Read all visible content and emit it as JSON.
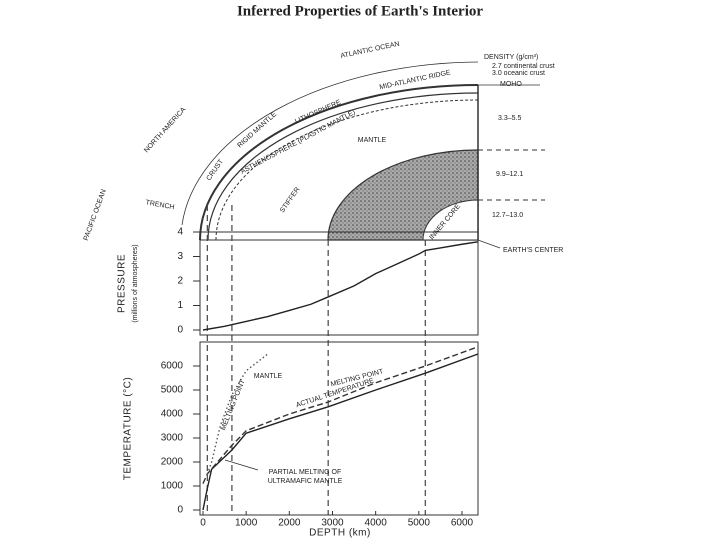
{
  "title": "Inferred Properties of Earth's Interior",
  "diagram": {
    "atlantic_ocean": "ATLANTIC OCEAN",
    "north_america": "NORTH AMERICA",
    "pacific_ocean": "PACIFIC OCEAN",
    "trench": "TRENCH",
    "ridge": "MID-ATLANTIC RIDGE",
    "lithosphere": "LITHOSPHERE",
    "asthenosphere": "ASTHENOSPHERE (PLASTIC MANTLE)",
    "rigid_mantle": "RIGID MANTLE",
    "crust": "CRUST",
    "mantle": "MANTLE",
    "stiffer": "STIFFER",
    "inner_core": "INNER CORE",
    "density_title": "DENSITY (g/cm³)",
    "continental_crust": "2.7 continental crust",
    "oceanic_crust": "3.0 oceanic crust",
    "moho": "MOHO",
    "density_mantle": "3.3–5.5",
    "density_outer_core": "9.9–12.1",
    "density_inner_core": "12.7–13.0",
    "earth_center": "EARTH'S CENTER",
    "boundary_depths": [
      100,
      670,
      2900,
      5150
    ]
  },
  "chart_data": [
    {
      "type": "line",
      "y_label": "PRESSURE",
      "y_sublabel": "(millions of atmospheres)",
      "x": [
        0,
        500,
        1000,
        1500,
        2000,
        2500,
        2900,
        3500,
        4000,
        4500,
        5000,
        5150,
        5500,
        6000,
        6371
      ],
      "values": [
        0,
        0.15,
        0.35,
        0.55,
        0.8,
        1.05,
        1.35,
        1.8,
        2.3,
        2.7,
        3.1,
        3.25,
        3.35,
        3.5,
        3.6
      ],
      "color": "#222",
      "xlim": [
        0,
        6371
      ],
      "ylim": [
        0,
        4
      ],
      "yticks": [
        0,
        1,
        2,
        3,
        4
      ]
    },
    {
      "type": "line",
      "y_label": "TEMPERATURE (°C)",
      "x_label": "DEPTH (km)",
      "series": [
        {
          "name": "ACTUAL TEMPERATURE",
          "color": "#222",
          "style": "solid",
          "x": [
            0,
            100,
            200,
            670,
            1000,
            2000,
            2900,
            4000,
            5150,
            6371
          ],
          "values": [
            0,
            900,
            1700,
            2500,
            3200,
            3800,
            4300,
            5000,
            5700,
            6500
          ]
        },
        {
          "name": "MELTING POINT",
          "color": "#333",
          "style": "dashed",
          "x": [
            0,
            100,
            670,
            1000,
            2000,
            2900,
            4000,
            5150,
            6371
          ],
          "values": [
            1100,
            1500,
            2700,
            3300,
            4000,
            4500,
            5300,
            6000,
            6800
          ]
        },
        {
          "name": "MELTING POINT",
          "color": "#555",
          "style": "dotted",
          "x": [
            100,
            200,
            400,
            670,
            1000,
            1500
          ],
          "values": [
            1500,
            2000,
            3500,
            4800,
            5800,
            6500
          ]
        }
      ],
      "annotations": [
        "MANTLE",
        "PARTIAL MELTING OF",
        "ULTRAMAFIC MANTLE"
      ],
      "xlim": [
        0,
        6371
      ],
      "xticks": [
        0,
        1000,
        2000,
        3000,
        4000,
        5000,
        6000
      ],
      "ylim": [
        0,
        7000
      ],
      "yticks": [
        0,
        1000,
        2000,
        3000,
        4000,
        5000,
        6000
      ]
    }
  ]
}
